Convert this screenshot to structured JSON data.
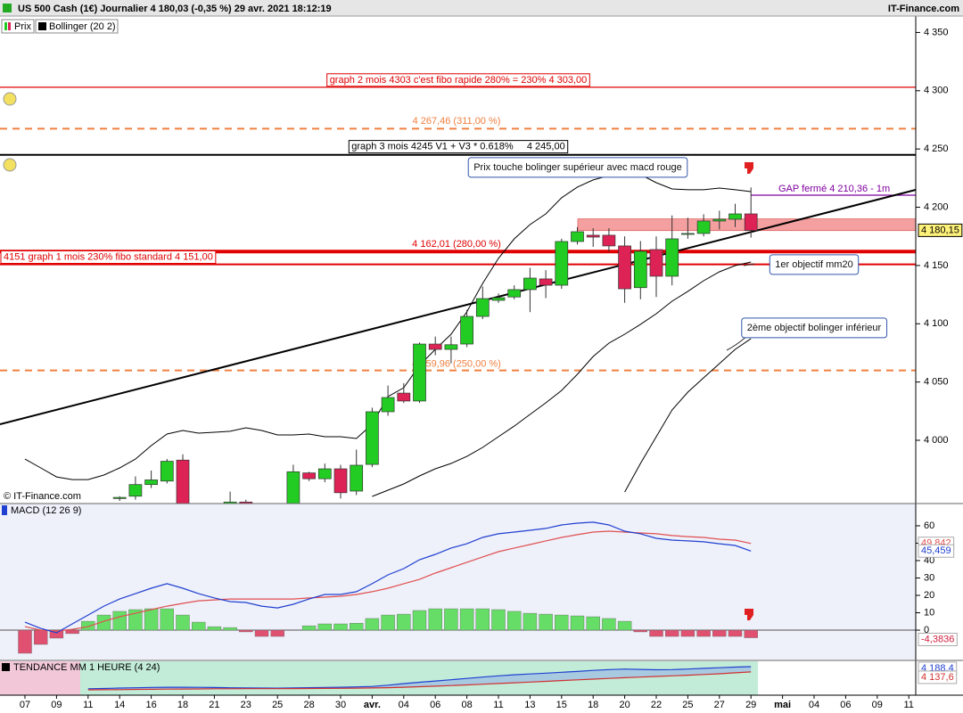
{
  "header": {
    "brand": "IT-Finance.com",
    "watermark": "© IT-Finance.com"
  },
  "chart_data": [
    {
      "type": "candlestick",
      "title": "US 500 Cash (1€) Journalier 4 180,03 (-0,35 %) 29 avr. 2021 18:12:19",
      "categories": [
        "07",
        null,
        "09",
        null,
        "11",
        null,
        "14",
        null,
        "16",
        null,
        "18",
        null,
        "21",
        null,
        "23",
        null,
        "25",
        null,
        "28",
        null,
        "30",
        null,
        "avr.",
        null,
        "04",
        null,
        "06",
        null,
        "08",
        null,
        "11",
        null,
        "13",
        null,
        "15",
        null,
        "18",
        null,
        "20",
        null,
        "22",
        null,
        "25",
        null,
        "27",
        null,
        "29",
        null,
        "mai",
        null,
        "04",
        null,
        "06",
        null,
        "09",
        null,
        "11"
      ],
      "ylim": [
        3945.7,
        4364.1
      ],
      "yticks": [
        {
          "value": 4000,
          "label": "4 000"
        },
        {
          "value": 4050,
          "label": "4 050"
        },
        {
          "value": 4100,
          "label": "4 100"
        },
        {
          "value": 4150,
          "label": "4 150"
        },
        {
          "value": 4200,
          "label": "4 200"
        },
        {
          "value": 4250,
          "label": "4 250"
        },
        {
          "value": 4300,
          "label": "4 300"
        },
        {
          "value": 4350,
          "label": "4 350"
        }
      ],
      "candles": {
        "name": "Prix",
        "up_color": "#22cc22",
        "down_color": "#dd2255",
        "open": [
          null,
          null,
          null,
          null,
          null,
          null,
          3950,
          3952,
          3962,
          3965,
          3983,
          null,
          null,
          3944,
          3947,
          null,
          null,
          3944,
          3972,
          3967,
          3975.5,
          3956.4,
          3979.3,
          4024.5,
          4040.5,
          4033.7,
          4082.6,
          4078,
          4082.6,
          4106.3,
          4120.1,
          4123,
          4129.3,
          4138.5,
          4133.1,
          4170.6,
          4176,
          4176,
          4166.8,
          4131,
          4163.7,
          4140.8,
          4176.7,
          4177.5,
          4188.2,
          4189.7,
          4194.3,
          null,
          null,
          null,
          null,
          null,
          null,
          null,
          null,
          null,
          null
        ],
        "high": [
          null,
          null,
          null,
          null,
          null,
          null,
          3952,
          3969,
          3974,
          3984,
          3988,
          null,
          null,
          3956,
          3949,
          null,
          null,
          3979,
          3973,
          3980,
          3979,
          3992,
          4028,
          4047,
          4049,
          4084,
          4089,
          4089,
          4112,
          4132,
          4126,
          4133,
          4148,
          4146,
          4173,
          4183,
          4182,
          4182,
          4175,
          4171,
          4175,
          4193,
          4191,
          4194,
          4197,
          4203,
          4217,
          null,
          null,
          null,
          null,
          null,
          null,
          null,
          null,
          null,
          null
        ],
        "low": [
          null,
          null,
          null,
          null,
          null,
          null,
          3948,
          3949,
          3959,
          3963,
          3938,
          null,
          null,
          3940,
          3940,
          null,
          null,
          3940,
          3965,
          3964,
          3950,
          3953,
          3977,
          4021,
          4032,
          4032,
          4073,
          4066,
          4080,
          4104,
          4118,
          4121,
          4110,
          4122,
          4130,
          4168,
          4166,
          4162,
          4118,
          4121,
          4123,
          4133,
          4173,
          4175,
          4181,
          4183,
          4174,
          null,
          null,
          null,
          null,
          null,
          null,
          null,
          null,
          null,
          null
        ],
        "close": [
          null,
          null,
          null,
          null,
          null,
          null,
          3951,
          3962,
          3966,
          3982,
          3940,
          null,
          null,
          3947,
          3944,
          null,
          null,
          3973,
          3967,
          3975.5,
          3955,
          3978.6,
          4024.5,
          4036.7,
          4033.7,
          4082.6,
          4078,
          4082,
          4106.3,
          4121.6,
          4122.4,
          4129.3,
          4139.2,
          4133.1,
          4170.6,
          4179,
          4174.4,
          4166.8,
          4130,
          4162.2,
          4140.8,
          4172.9,
          4177.5,
          4188.2,
          4189.7,
          4194.3,
          4180.03,
          null,
          null,
          null,
          null,
          null,
          null,
          null,
          null,
          null,
          null
        ]
      },
      "bands": {
        "name": "Bollinger (20 2)",
        "color": "#000000",
        "lines": [
          {
            "values": [
              3983.9,
              3976.3,
              3968.6,
              3966.3,
              3966.3,
              3970.2,
              3976.3,
              3983.9,
              3995.4,
              4005.4,
              4008.4,
              4006.1,
              4006.9,
              4007.7,
              4010.7,
              4008.4,
              4004.6,
              4004.6,
              4005.4,
              4003.1,
              4003.1,
              4001.5,
              4013.8,
              4037.5,
              4045.1,
              4064.3,
              4078,
              4091,
              4110.2,
              4134.6,
              4156.1,
              4172.9,
              4185.1,
              4194.3,
              4208.1,
              4217.3,
              4223.4,
              4227.2,
              4227.2,
              4228,
              4221.1,
              4215.7,
              4215,
              4215,
              4216.5,
              4215,
              4213.4,
              null,
              null,
              null,
              null,
              null,
              null,
              null,
              null,
              null,
              null
            ]
          },
          {
            "values": [
              null,
              null,
              null,
              null,
              null,
              null,
              null,
              null,
              null,
              null,
              null,
              null,
              null,
              null,
              null,
              null,
              null,
              null,
              null,
              null,
              null,
              null,
              3951.8,
              3957.2,
              3962.5,
              3969.4,
              3975.5,
              3980.1,
              3986.2,
              3993.9,
              4003.1,
              4012.2,
              4022.2,
              4032.1,
              4042.8,
              4056.6,
              4071.9,
              4083.4,
              4091,
              4099.5,
              4108.6,
              4119.3,
              4127.8,
              4136.9,
              4144.6,
              4149.9,
              4153,
              null,
              null,
              null,
              null,
              null,
              null,
              null,
              null,
              null,
              null
            ]
          },
          {
            "values": [
              null,
              null,
              null,
              null,
              null,
              null,
              null,
              null,
              null,
              null,
              null,
              null,
              null,
              null,
              null,
              null,
              null,
              null,
              null,
              null,
              null,
              null,
              null,
              null,
              null,
              null,
              null,
              null,
              null,
              null,
              null,
              null,
              null,
              null,
              null,
              null,
              null,
              null,
              3955.6,
              3980.1,
              4003.1,
              4026,
              4041.3,
              4053.6,
              4065.8,
              4078,
              4087.2,
              null,
              null,
              null,
              null,
              null,
              null,
              null,
              null,
              null,
              null
            ]
          }
        ]
      },
      "zone": {
        "from": 4180,
        "to": 4190,
        "color": "#f4a0a0"
      },
      "levels": [
        {
          "value": 4303,
          "label": "graph 2 mois 4303 c'est fibo rapide 280% = 230% 4 303,00",
          "color": "#e00000",
          "style": "solid"
        },
        {
          "value": 4267.46,
          "label": "4 267,46 (311,00 %)",
          "color": "#f08040",
          "style": "dashed"
        },
        {
          "value": 4245,
          "label": "graph 3 mois 4245 V1 + V3 * 0.618%     4 245,00",
          "color": "#000000",
          "style": "medium"
        },
        {
          "value": 4210.36,
          "label": "GAP fermé 4 210,36 - 1m",
          "color": "#8000a0",
          "style": "solid"
        },
        {
          "value": 4162.01,
          "label": "4 162,01 (280,00 %)",
          "color": "#e00000",
          "style": "thick"
        },
        {
          "value": 4151,
          "label": "4151 graph 1 mois 230% fibo standard 4 151,00",
          "color": "#e00000",
          "style": "medium"
        },
        {
          "value": 4059.96,
          "label": "4 059,96 (250,00 %)",
          "color": "#f08040",
          "style": "dashed"
        }
      ],
      "callouts": [
        "Prix touche bolinger supérieur avec macd rouge",
        "1er objectif mm20",
        "2ème objectif bolinger inférieur"
      ],
      "last_price": {
        "value": 4180.15,
        "label": "4 180,15"
      }
    },
    {
      "type": "macd",
      "title": "MACD (12 26 9)",
      "ylim": [
        -16.9,
        72.8
      ],
      "yticks": [
        0,
        10,
        20,
        30,
        40,
        50,
        60
      ],
      "histogram": {
        "up_color": "#66dd66",
        "down_color": "#e05070",
        "last_label": "-4,3836",
        "values": [
          -13.3,
          -8.2,
          -4.6,
          -2,
          5.1,
          8.7,
          10.8,
          11.8,
          12.3,
          12.3,
          8.7,
          4.6,
          2,
          1.5,
          -1,
          -3.6,
          -3.6,
          0,
          2.5,
          3.6,
          3.6,
          4,
          6.7,
          8.7,
          9.2,
          11.3,
          12.3,
          12.3,
          12.3,
          12.3,
          11.8,
          10.8,
          9.7,
          9.2,
          8.7,
          8.2,
          7.7,
          6.7,
          5.1,
          -1,
          -3.6,
          -3.6,
          -3.6,
          -3.6,
          -3.6,
          -3.6,
          -4.3836,
          null,
          null,
          null,
          null,
          null,
          null,
          null,
          null,
          null,
          null
        ]
      },
      "series": [
        {
          "color": "#e05050",
          "last_label": "49,842",
          "values": [
            2,
            0,
            -0.5,
            0.5,
            2,
            5.1,
            7.7,
            9.7,
            11.8,
            13.8,
            15.4,
            16.9,
            17.4,
            17.9,
            17.9,
            17.9,
            17.9,
            17.9,
            18.5,
            19,
            19.5,
            20.5,
            22.1,
            24.1,
            26.7,
            29.2,
            32.8,
            35.9,
            39,
            42.1,
            45.1,
            47.2,
            49.2,
            51.3,
            53.3,
            54.9,
            56.4,
            56.9,
            56.4,
            55.9,
            55.4,
            54.4,
            53.8,
            53.3,
            52.3,
            51.8,
            49.842,
            null,
            null,
            null,
            null,
            null,
            null,
            null,
            null,
            null,
            null
          ]
        },
        {
          "color": "#2040d0",
          "last_label": "45,459",
          "values": [
            4.6,
            1,
            -1.5,
            3.6,
            8.7,
            13.8,
            17.9,
            21,
            24.1,
            26.7,
            24.1,
            21,
            18.5,
            16.4,
            15.9,
            13.8,
            12.8,
            14.9,
            17.9,
            20.5,
            20.5,
            22.1,
            26.7,
            31.8,
            35.4,
            40.5,
            43.6,
            47.2,
            49.7,
            53.3,
            55.4,
            56.4,
            57.4,
            58.5,
            60.5,
            61.5,
            62.1,
            60.5,
            56.9,
            55.4,
            52.8,
            51.8,
            51.3,
            50.8,
            49.7,
            48.7,
            45.459,
            null,
            null,
            null,
            null,
            null,
            null,
            null,
            null,
            null,
            null
          ]
        }
      ]
    },
    {
      "type": "line",
      "title": "TENDANCE MM 1 HEURE (4 24)",
      "series": [
        {
          "color": "#2040d0",
          "last_label": "4 188,4",
          "values": [
            null,
            null,
            null,
            null,
            3975,
            3978,
            3982,
            3985,
            3988,
            3990,
            3990,
            3989,
            3987,
            3985,
            3983,
            3982,
            3981,
            3983,
            3986,
            3988,
            3990,
            3993,
            3998,
            4010,
            4025,
            4038,
            4050,
            4062,
            4075,
            4088,
            4100,
            4110,
            4118,
            4126,
            4134,
            4142,
            4152,
            4160,
            4165,
            4162,
            4158,
            4160,
            4165,
            4172,
            4178,
            4184,
            4188.4,
            null,
            null,
            null,
            null,
            null,
            null,
            null,
            null,
            null,
            null
          ]
        },
        {
          "color": "#d03030",
          "last_label": "4 137,6",
          "values": [
            null,
            null,
            null,
            null,
            3965,
            3966,
            3967,
            3969,
            3970,
            3972,
            3973,
            3974,
            3975,
            3975,
            3976,
            3976,
            3976,
            3977,
            3978,
            3979,
            3980,
            3981,
            3983,
            3986,
            3990,
            3995,
            4000,
            4006,
            4012,
            4019,
            4026,
            4033,
            4040,
            4047,
            4054,
            4061,
            4068,
            4075,
            4082,
            4088,
            4094,
            4100,
            4106,
            4113,
            4120,
            4129,
            4137.6,
            null,
            null,
            null,
            null,
            null,
            null,
            null,
            null,
            null,
            null
          ]
        }
      ]
    }
  ]
}
